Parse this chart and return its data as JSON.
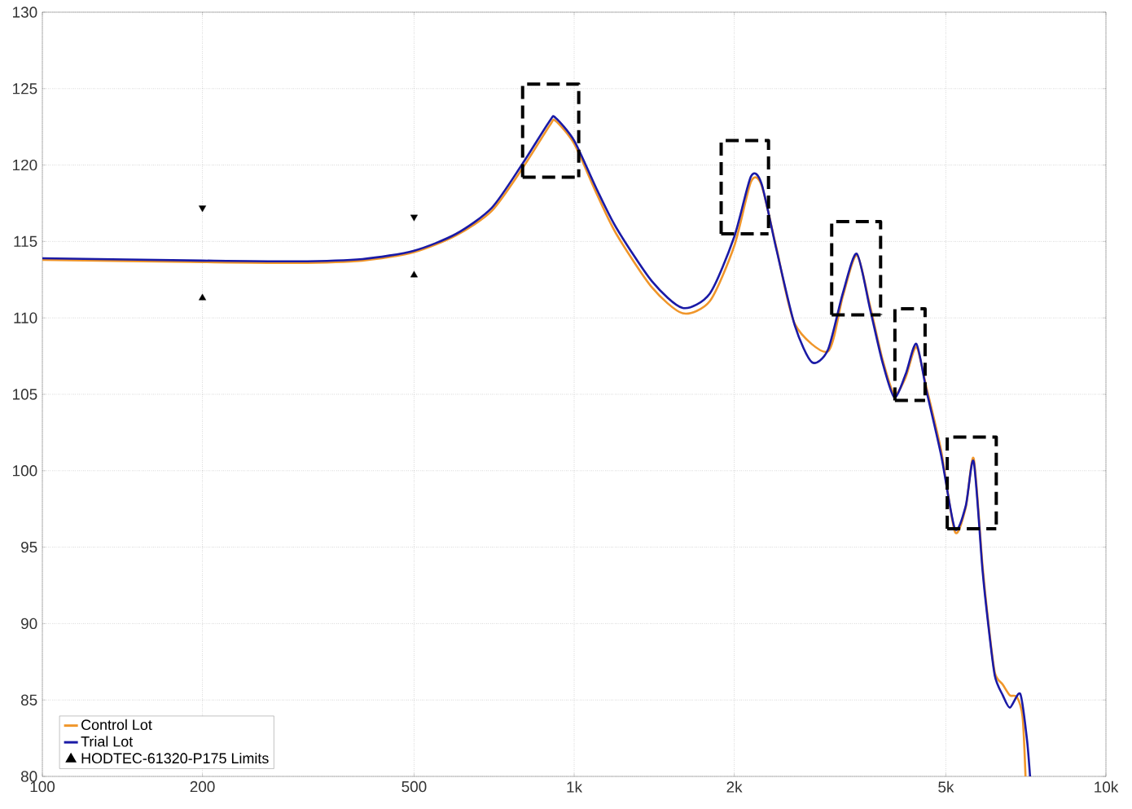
{
  "chart_data": {
    "type": "line",
    "log": "x",
    "grid": true,
    "legend": "bottom left",
    "xlim": [
      100,
      10000
    ],
    "ylim": [
      80,
      130
    ],
    "xticks": [
      {
        "value": 100,
        "label": "100"
      },
      {
        "value": 200,
        "label": "200"
      },
      {
        "value": 500,
        "label": "500"
      },
      {
        "value": 1000,
        "label": "1k"
      },
      {
        "value": 2000,
        "label": "2k"
      },
      {
        "value": 5000,
        "label": "5k"
      },
      {
        "value": 10000,
        "label": "10k"
      }
    ],
    "yticks": [
      80,
      85,
      90,
      95,
      100,
      105,
      110,
      115,
      120,
      125,
      130
    ],
    "series": [
      {
        "name": "Control Lot",
        "color": "#f0962a",
        "marker": "none",
        "line_style": "solid",
        "x": [
          100,
          200,
          300,
          400,
          500,
          600,
          700,
          800,
          900,
          922,
          1000,
          1100,
          1200,
          1400,
          1600,
          1800,
          2000,
          2150,
          2250,
          2400,
          2600,
          2800,
          3000,
          3200,
          3400,
          3600,
          3800,
          4000,
          4200,
          4400,
          4600,
          4900,
          5200,
          5450,
          5640,
          5860,
          6000,
          6180,
          6400,
          6600,
          6800,
          6970,
          7060
        ],
        "values": [
          113.8,
          113.65,
          113.6,
          113.75,
          114.3,
          115.4,
          117.0,
          119.8,
          122.6,
          122.9,
          121.4,
          118.2,
          115.5,
          112.0,
          110.3,
          111.1,
          114.7,
          118.9,
          118.7,
          114.6,
          109.6,
          null,
          107.8,
          111.4,
          114.1,
          110.8,
          107.3,
          105.0,
          106.1,
          108.1,
          105.4,
          101.3,
          96.0,
          97.6,
          100.8,
          93.8,
          90.3,
          86.8,
          86.0,
          85.3,
          85.2,
          83.9,
          80
        ]
      },
      {
        "name": "Trial Lot",
        "color": "#1a1aa6",
        "marker": "none",
        "line_style": "solid",
        "x": [
          100,
          200,
          300,
          400,
          500,
          600,
          700,
          800,
          900,
          922,
          1000,
          1100,
          1200,
          1400,
          1600,
          1800,
          2000,
          2150,
          2250,
          2400,
          2600,
          2800,
          3000,
          3200,
          3400,
          3600,
          3800,
          4000,
          4200,
          4400,
          4600,
          4900,
          5200,
          5450,
          5640,
          5860,
          6000,
          6180,
          6400,
          6600,
          6900,
          7100,
          7200
        ],
        "values": [
          113.9,
          113.75,
          113.7,
          113.85,
          114.4,
          115.5,
          117.2,
          120.1,
          122.9,
          123.1,
          121.6,
          118.5,
          115.9,
          112.4,
          110.65,
          111.6,
          115.3,
          119.25,
          118.8,
          114.5,
          109.5,
          107.1,
          107.9,
          111.6,
          114.2,
          110.6,
          107.1,
          104.8,
          106.3,
          108.3,
          105.2,
          101.0,
          96.2,
          97.7,
          100.6,
          93.5,
          90.1,
          86.6,
          85.3,
          84.5,
          85.4,
          82.5,
          80
        ]
      },
      {
        "name": "HODTEC-61320-P175 Limits",
        "type": "scatter",
        "color": "#000000",
        "marker": "triangle",
        "x": [
          200,
          500
        ],
        "values": [
          111.3,
          112.8
        ]
      },
      {
        "type": "scatter",
        "color": "#000000",
        "marker": "triangle",
        "x": [
          200,
          500
        ],
        "values": [
          117.2,
          116.6
        ]
      },
      {
        "type": "line",
        "color": "#000000",
        "marker": "none",
        "line_style": "dashed",
        "x": [
          800,
          800,
          1020,
          1020
        ],
        "values": [
          119.2,
          125.3,
          125.3,
          119.2
        ]
      },
      {
        "type": "line",
        "color": "#000000",
        "marker": "none",
        "line_style": "dashed",
        "x": [
          800,
          1020
        ],
        "values": [
          119.2,
          119.2
        ]
      },
      {
        "type": "line",
        "color": "#000000",
        "marker": "none",
        "line_style": "dashed",
        "x": [
          1890,
          1890,
          2320,
          2320
        ],
        "values": [
          115.5,
          121.6,
          121.6,
          115.5
        ]
      },
      {
        "type": "line",
        "color": "#000000",
        "marker": "none",
        "line_style": "dashed",
        "x": [
          1890,
          2320
        ],
        "values": [
          115.5,
          115.5
        ]
      },
      {
        "type": "line",
        "color": "#000000",
        "marker": "none",
        "line_style": "dashed",
        "x": [
          3050,
          3050,
          3770,
          3770
        ],
        "values": [
          110.2,
          116.3,
          116.3,
          110.2
        ]
      },
      {
        "type": "line",
        "color": "#000000",
        "marker": "none",
        "line_style": "dashed",
        "x": [
          3050,
          3770
        ],
        "values": [
          110.2,
          110.2
        ]
      },
      {
        "type": "line",
        "color": "#000000",
        "marker": "none",
        "line_style": "dashed",
        "x": [
          4010,
          4010,
          4570,
          4570
        ],
        "values": [
          104.6,
          110.6,
          110.6,
          104.6
        ]
      },
      {
        "type": "line",
        "color": "#000000",
        "marker": "none",
        "line_style": "dashed",
        "x": [
          4010,
          4570
        ],
        "values": [
          104.6,
          104.6
        ]
      },
      {
        "type": "line",
        "color": "#000000",
        "marker": "none",
        "line_style": "dashed",
        "x": [
          5030,
          5030,
          6220,
          6220
        ],
        "values": [
          96.2,
          102.2,
          102.2,
          96.2
        ]
      },
      {
        "type": "line",
        "color": "#000000",
        "marker": "none",
        "line_style": "dashed",
        "x": [
          5030,
          6220
        ],
        "values": [
          96.2,
          96.2
        ]
      }
    ]
  }
}
